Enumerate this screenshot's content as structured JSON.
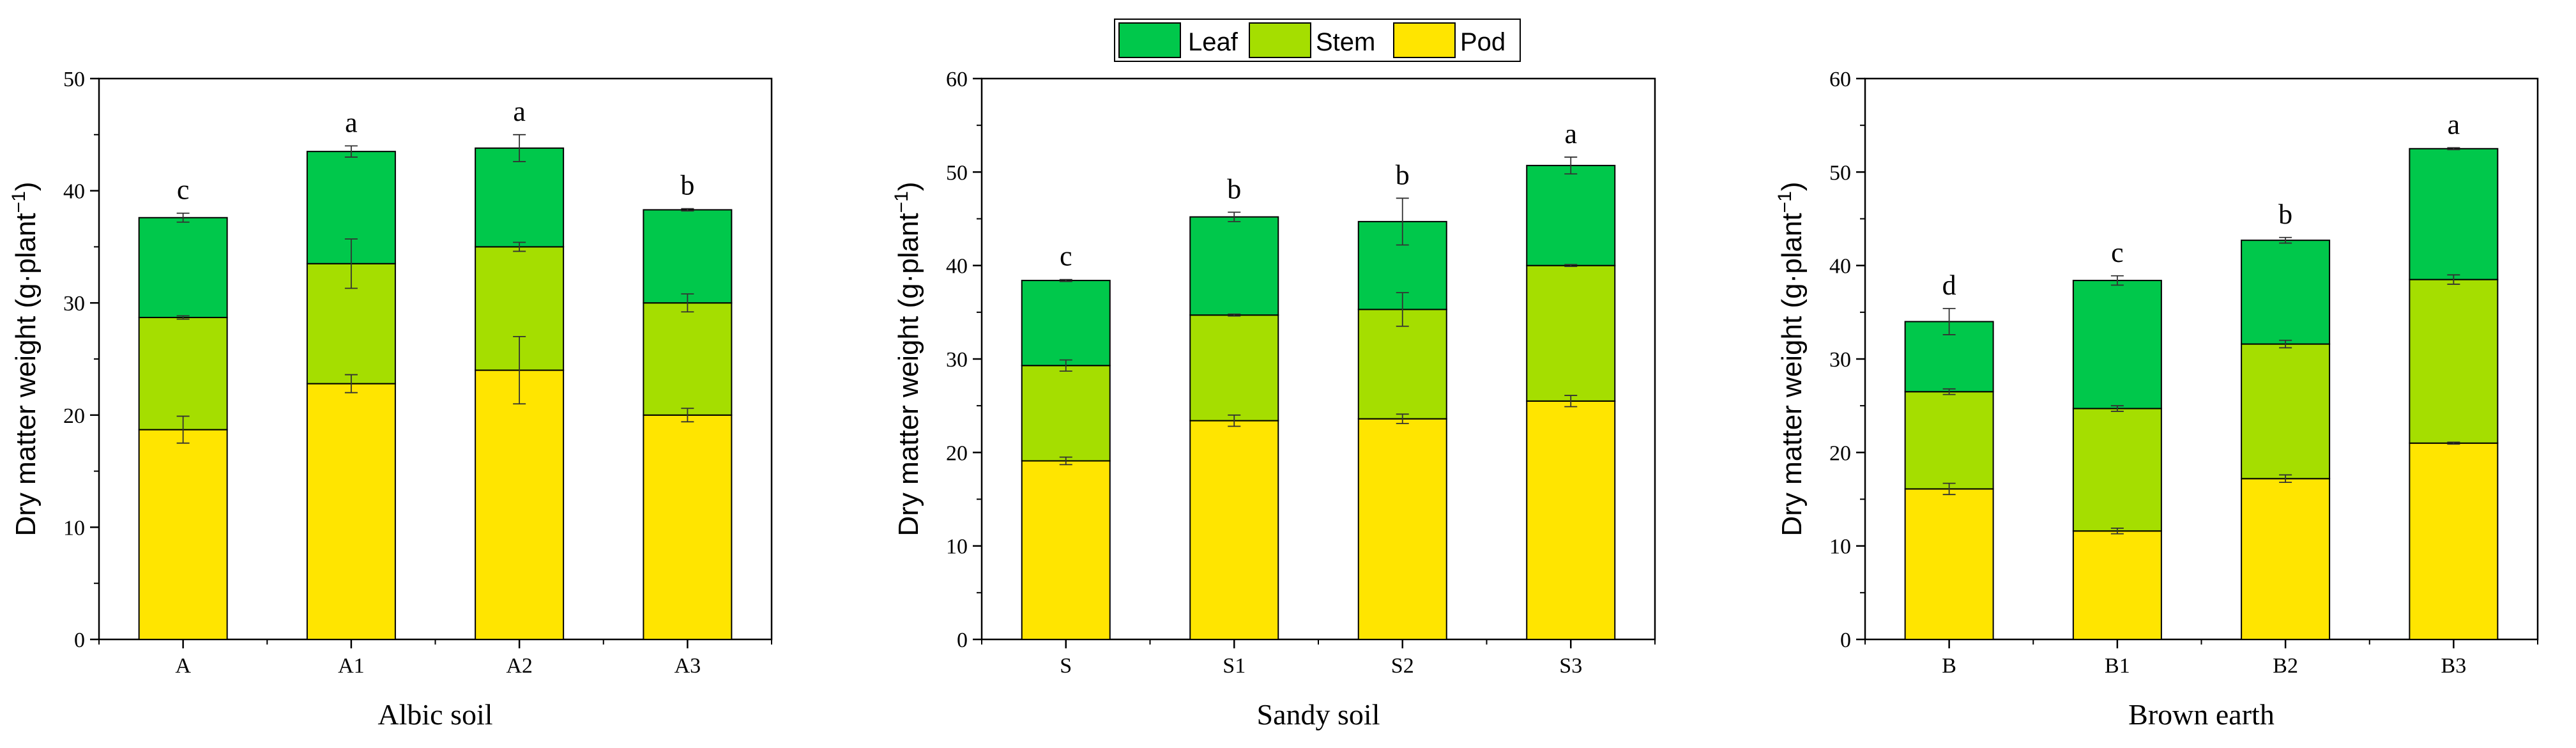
{
  "colors": {
    "leaf": "#00c84b",
    "stem": "#a5de00",
    "pod": "#ffe500",
    "axis": "#000000",
    "frame": "#000000"
  },
  "legend": {
    "items": [
      {
        "key": "leaf",
        "label": "Leaf"
      },
      {
        "key": "stem",
        "label": "Stem"
      },
      {
        "key": "pod",
        "label": "Pod"
      }
    ]
  },
  "chart_data": [
    {
      "type": "bar",
      "stacked": true,
      "title": "Albic soil",
      "xlabel": "Albic soil",
      "ylabel": "Dry matter weight (g·plant",
      "ylabel_sup": "−1",
      "ylabel_close": ")",
      "ylim": [
        0,
        50
      ],
      "yticks": [
        0,
        10,
        20,
        30,
        40,
        50
      ],
      "categories": [
        "A",
        "A1",
        "A2",
        "A3"
      ],
      "series": [
        {
          "name": "Pod",
          "key": "pod",
          "values": [
            18.7,
            22.8,
            24.0,
            20.0
          ],
          "errors": [
            1.2,
            0.8,
            3.0,
            0.6
          ]
        },
        {
          "name": "Stem",
          "key": "stem",
          "values": [
            10.0,
            10.7,
            11.0,
            10.0
          ],
          "errors": [
            0.15,
            2.2,
            0.4,
            0.8
          ]
        },
        {
          "name": "Leaf",
          "key": "leaf",
          "values": [
            8.9,
            10.0,
            8.8,
            8.3
          ],
          "errors": [
            0.4,
            0.5,
            1.2,
            0.1
          ]
        }
      ],
      "significance": [
        "c",
        "a",
        "a",
        "b"
      ]
    },
    {
      "type": "bar",
      "stacked": true,
      "title": "Sandy soil",
      "xlabel": "Sandy soil",
      "ylabel": "Dry matter weight (g·plant",
      "ylabel_sup": "−1",
      "ylabel_close": ")",
      "ylim": [
        0,
        60
      ],
      "yticks": [
        0,
        10,
        20,
        30,
        40,
        50,
        60
      ],
      "categories": [
        "S",
        "S1",
        "S2",
        "S3"
      ],
      "series": [
        {
          "name": "Pod",
          "key": "pod",
          "values": [
            19.1,
            23.4,
            23.6,
            25.5
          ],
          "errors": [
            0.4,
            0.6,
            0.5,
            0.6
          ]
        },
        {
          "name": "Stem",
          "key": "stem",
          "values": [
            10.2,
            11.3,
            11.7,
            14.5
          ],
          "errors": [
            0.6,
            0.1,
            1.8,
            0.1
          ]
        },
        {
          "name": "Leaf",
          "key": "leaf",
          "values": [
            9.1,
            10.5,
            9.4,
            10.7
          ],
          "errors": [
            0.1,
            0.5,
            2.5,
            0.9
          ]
        }
      ],
      "significance": [
        "c",
        "b",
        "b",
        "a"
      ]
    },
    {
      "type": "bar",
      "stacked": true,
      "title": "Brown earth",
      "xlabel": "Brown earth",
      "ylabel": "Dry matter weight (g·plant",
      "ylabel_sup": "−1",
      "ylabel_close": ")",
      "ylim": [
        0,
        60
      ],
      "yticks": [
        0,
        10,
        20,
        30,
        40,
        50,
        60
      ],
      "categories": [
        "B",
        "B1",
        "B2",
        "B3"
      ],
      "series": [
        {
          "name": "Pod",
          "key": "pod",
          "values": [
            16.1,
            11.6,
            17.2,
            21.0
          ],
          "errors": [
            0.6,
            0.3,
            0.4,
            0.1
          ]
        },
        {
          "name": "Stem",
          "key": "stem",
          "values": [
            10.4,
            13.1,
            14.4,
            17.5
          ],
          "errors": [
            0.3,
            0.3,
            0.4,
            0.5
          ]
        },
        {
          "name": "Leaf",
          "key": "leaf",
          "values": [
            7.5,
            13.7,
            11.1,
            14.0
          ],
          "errors": [
            1.4,
            0.5,
            0.3,
            0.1
          ]
        }
      ],
      "significance": [
        "d",
        "c",
        "b",
        "a"
      ]
    }
  ]
}
